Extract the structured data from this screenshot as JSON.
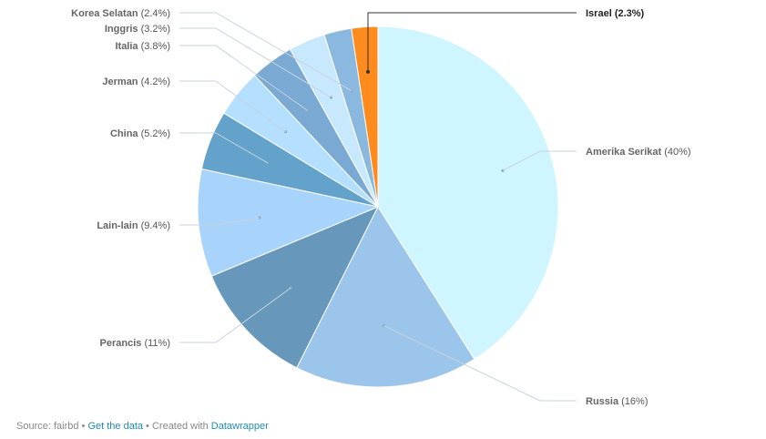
{
  "chart_data": {
    "type": "pie",
    "title": "",
    "slices": [
      {
        "label": "Amerika Serikat",
        "value": 40,
        "value_label": "(40%)",
        "color": "#cff5fe"
      },
      {
        "label": "Russia",
        "value": 16,
        "value_label": "(16%)",
        "color": "#9cc5ec"
      },
      {
        "label": "Perancis",
        "value": 11,
        "value_label": "(11%)",
        "color": "#6897bc"
      },
      {
        "label": "Lain-lain",
        "value": 9.4,
        "value_label": "(9.4%)",
        "color": "#a8d4fb"
      },
      {
        "label": "China",
        "value": 5.2,
        "value_label": "(5.2%)",
        "color": "#62a2cb"
      },
      {
        "label": "Jerman",
        "value": 4.2,
        "value_label": "(4.2%)",
        "color": "#b4dffe"
      },
      {
        "label": "Italia",
        "value": 3.8,
        "value_label": "(3.8%)",
        "color": "#7aaad4"
      },
      {
        "label": "Inggris",
        "value": 3.2,
        "value_label": "(3.2%)",
        "color": "#c8e8fe"
      },
      {
        "label": "Korea Selatan",
        "value": 2.4,
        "value_label": "(2.4%)",
        "color": "#8bb8df"
      },
      {
        "label": "Israel",
        "value": 2.3,
        "value_label": "(2.3%)",
        "color": "#fd8b1e",
        "highlight": true
      }
    ],
    "start_angle": 0,
    "direction": "clockwise",
    "legend": "none"
  },
  "footer": {
    "source_text": "Source: fairbd",
    "separator": " • ",
    "get_data": "Get the data",
    "created_with": "Created with ",
    "tool": "Datawrapper"
  }
}
